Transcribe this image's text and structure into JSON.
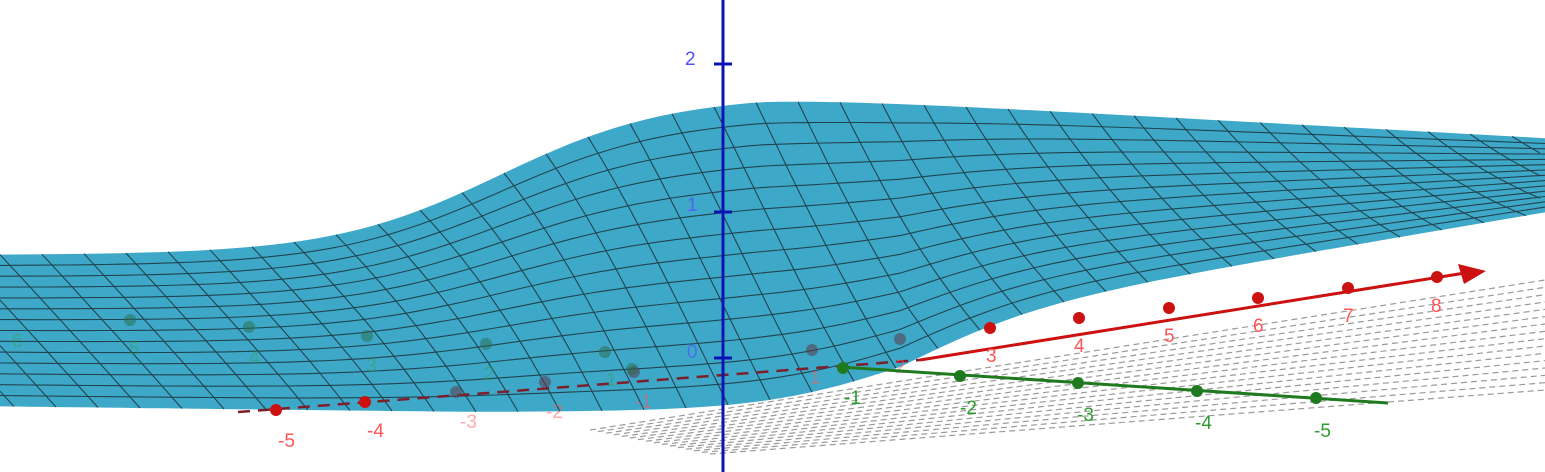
{
  "app": {
    "view": "3D Graphics"
  },
  "colors": {
    "background": "#ffffff",
    "surface": "#3ea8c8",
    "surface_mesh": "#1e3a44",
    "x_axis": "#cc1111",
    "x_label": "#ff5555",
    "y_axis": "#1f7a1f",
    "y_label": "#2e9c2e",
    "z_axis": "#0a14b4",
    "z_label": "#5050ff",
    "plane_grid": "#9a9a9a"
  },
  "axes": {
    "z": {
      "labels": [
        "0",
        "1",
        "2"
      ]
    },
    "x": {
      "labels": [
        "-5",
        "-4",
        "-3",
        "-2",
        "-1",
        "1",
        "2",
        "3",
        "4",
        "5",
        "6",
        "7",
        "8"
      ]
    },
    "y": {
      "labels": [
        "-5",
        "-4",
        "-3",
        "-2",
        "-1",
        "1",
        "2",
        "3",
        "4",
        "5",
        "6"
      ]
    }
  }
}
